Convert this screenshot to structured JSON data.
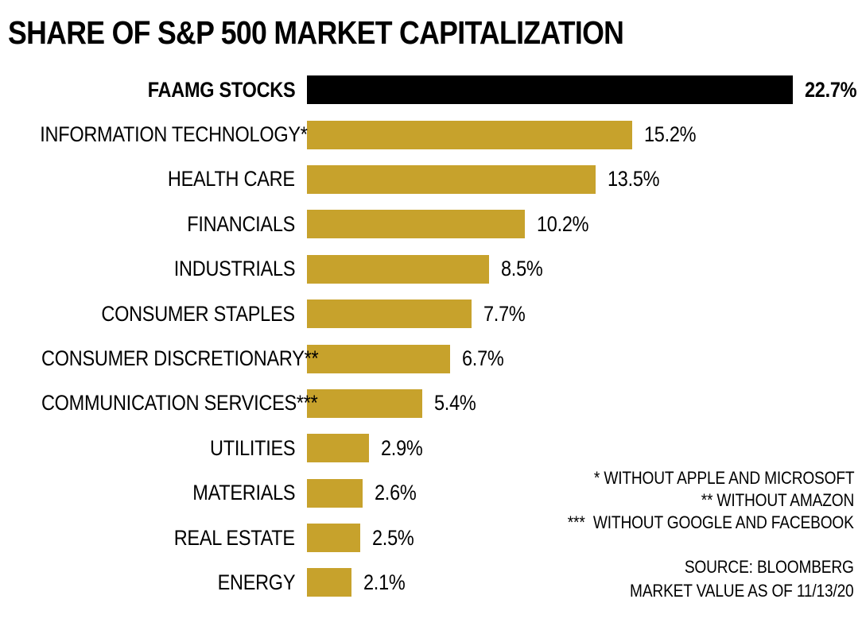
{
  "title": "SHARE OF S&P 500 MARKET CAPITALIZATION",
  "chart_data": {
    "type": "bar",
    "orientation": "horizontal",
    "title": "SHARE OF S&P 500 MARKET CAPITALIZATION",
    "xlabel": "",
    "ylabel": "",
    "unit": "%",
    "xlim": [
      0,
      22.7
    ],
    "grid": false,
    "legend": "none",
    "categories": [
      "FAAMG STOCKS",
      "INFORMATION TECHNOLOGY*",
      "HEALTH CARE",
      "FINANCIALS",
      "INDUSTRIALS",
      "CONSUMER STAPLES",
      "CONSUMER DISCRETIONARY**",
      "COMMUNICATION SERVICES***",
      "UTILITIES",
      "MATERIALS",
      "REAL ESTATE",
      "ENERGY"
    ],
    "values": [
      22.7,
      15.2,
      13.5,
      10.2,
      8.5,
      7.7,
      6.7,
      5.4,
      2.9,
      2.6,
      2.5,
      2.1
    ],
    "value_labels": [
      "22.7%",
      "15.2%",
      "13.5%",
      "10.2%",
      "8.5%",
      "7.7%",
      "6.7%",
      "5.4%",
      "2.9%",
      "2.6%",
      "2.5%",
      "2.1%"
    ],
    "emphasized_index": 0,
    "bar_color_default": "#C7A22C",
    "bar_color_emphasized": "#000000"
  },
  "footnotes": [
    "* WITHOUT APPLE AND MICROSOFT",
    "** WITHOUT AMAZON",
    "***  WITHOUT GOOGLE AND FACEBOOK"
  ],
  "source_lines": [
    "SOURCE: BLOOMBERG",
    "MARKET VALUE AS OF 11/13/20"
  ]
}
